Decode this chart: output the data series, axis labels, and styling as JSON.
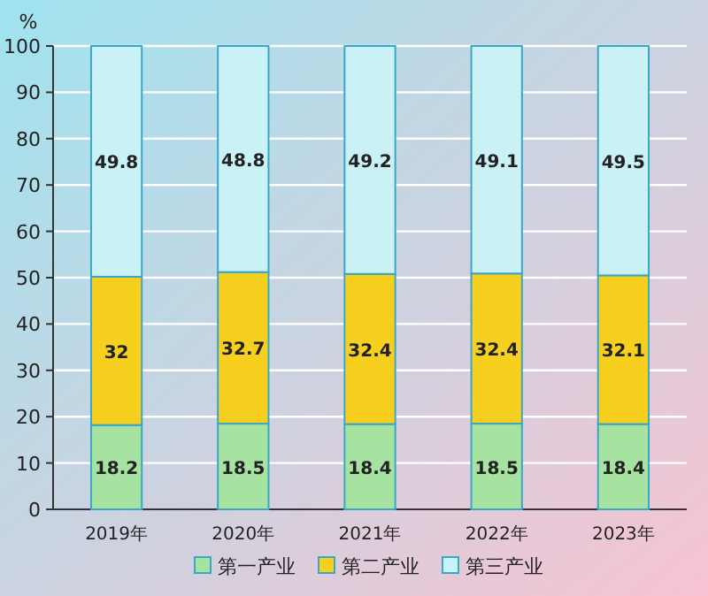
{
  "chart_data": {
    "type": "bar",
    "stacked": true,
    "ylabel": "%",
    "categories": [
      "2019年",
      "2020年",
      "2021年",
      "2022年",
      "2023年"
    ],
    "series": [
      {
        "name": "第一产业",
        "color": "#a6e3a0",
        "values": [
          18.2,
          18.5,
          18.4,
          18.5,
          18.4
        ]
      },
      {
        "name": "第二产业",
        "color": "#f7cf1e",
        "values": [
          32,
          32.7,
          32.4,
          32.4,
          32.1
        ]
      },
      {
        "name": "第三产业",
        "color": "#c9f1f6",
        "values": [
          49.8,
          48.8,
          49.2,
          49.1,
          49.5
        ]
      }
    ],
    "ylim": [
      0,
      100
    ],
    "yticks": [
      0,
      10,
      20,
      30,
      40,
      50,
      60,
      70,
      80,
      90,
      100
    ],
    "grid": "y",
    "legend": "bottom",
    "data_labels": true
  }
}
